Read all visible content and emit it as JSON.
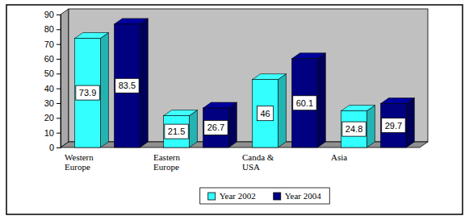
{
  "chart_data": {
    "type": "bar",
    "categories": [
      "Western Europe",
      "Eastern Europe",
      "Canda & USA",
      "Asia"
    ],
    "series": [
      {
        "name": "Year 2002",
        "color": "#33ffff",
        "values": [
          73.9,
          21.5,
          46,
          24.8
        ]
      },
      {
        "name": "Year 2004",
        "color": "#000080",
        "values": [
          83.5,
          26.7,
          60.1,
          29.7
        ]
      }
    ],
    "ylim": [
      0,
      90
    ],
    "yticks": [
      0,
      10,
      20,
      30,
      40,
      50,
      60,
      70,
      80,
      90
    ],
    "grid": false,
    "data_labels": true,
    "legend": "bottom"
  }
}
